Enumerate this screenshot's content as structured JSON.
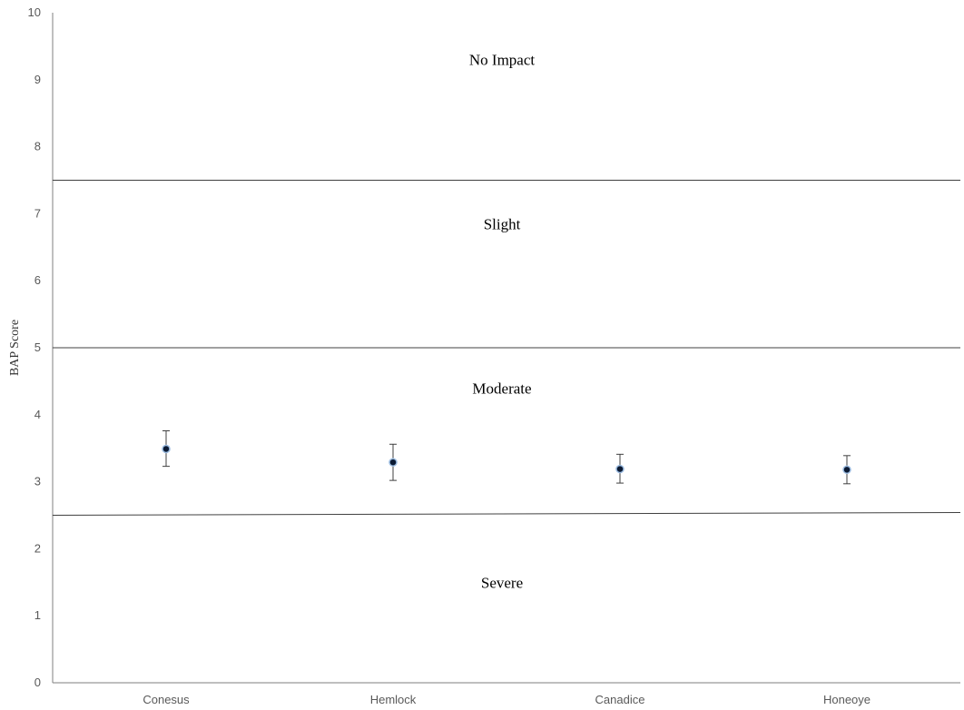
{
  "chart_data": {
    "type": "scatter",
    "title": "",
    "xlabel": "",
    "ylabel": "BAP Score",
    "ylim": [
      0,
      10
    ],
    "yticks": [
      "0",
      "1",
      "2",
      "3",
      "4",
      "5",
      "6",
      "7",
      "8",
      "9",
      "10"
    ],
    "categories": [
      "Conesus",
      "Hemlock",
      "Canadice",
      "Honeoye"
    ],
    "series": [
      {
        "values": [
          3.49,
          3.29,
          3.19,
          3.18
        ],
        "error_low": [
          3.23,
          3.02,
          2.98,
          2.97
        ],
        "error_high": [
          3.76,
          3.56,
          3.41,
          3.39
        ]
      }
    ],
    "thresholds": [
      {
        "y_start": 7.5,
        "y_end": 7.5
      },
      {
        "y_start": 5.0,
        "y_end": 5.0
      },
      {
        "y_start": 2.5,
        "y_end": 2.54
      }
    ],
    "zones": [
      {
        "label": "No Impact",
        "y": 9.3
      },
      {
        "label": "Slight",
        "y": 6.85
      },
      {
        "label": "Moderate",
        "y": 4.4
      },
      {
        "label": "Severe",
        "y": 1.5
      }
    ],
    "grid": false,
    "legend": "none",
    "colors": {
      "point_fill": "#0b1a33",
      "point_outline": "#9bbbe0",
      "lines": "#404040"
    }
  }
}
